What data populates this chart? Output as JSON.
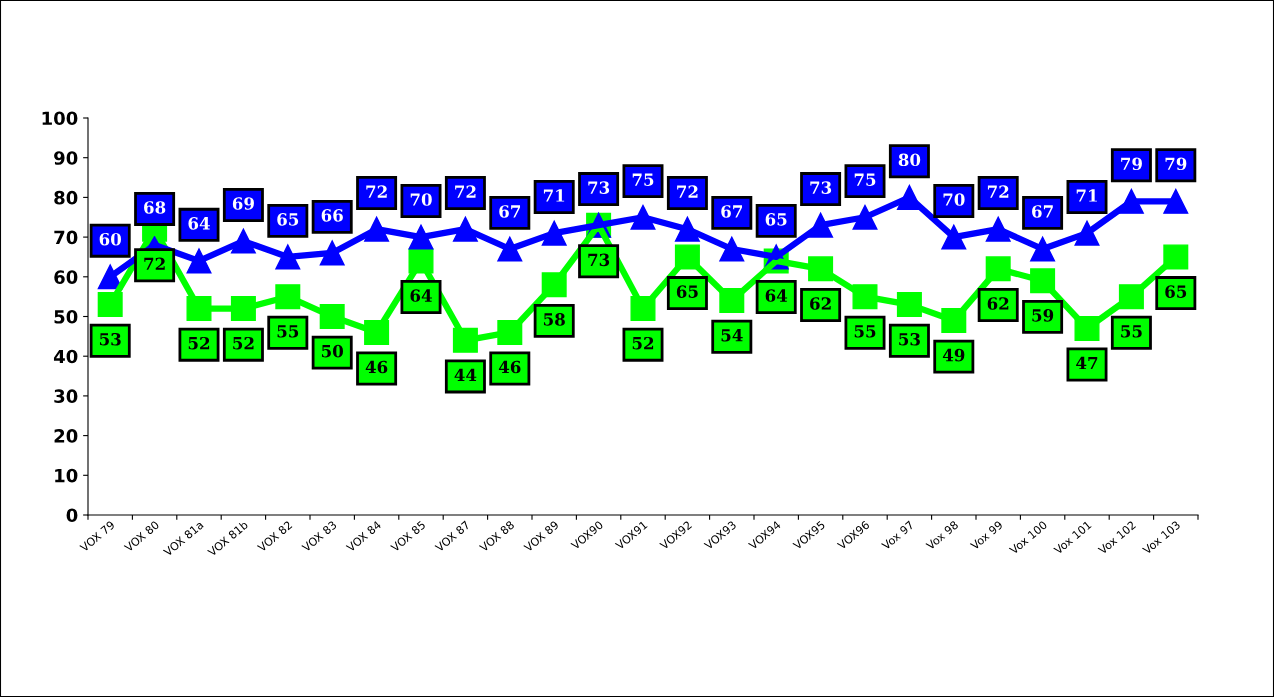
{
  "chart_data": {
    "type": "line",
    "categories": [
      "VOX 79",
      "VOX 80",
      "VOX 81a",
      "VOX 81b",
      "VOX 82",
      "VOX 83",
      "VOX 84",
      "VOX 85",
      "VOX 87",
      "VOX 88",
      "VOX 89",
      "VOX90",
      "VOX91",
      "VOX92",
      "VOX93",
      "VOX94",
      "VOX95",
      "VOX96",
      "Vox 97",
      "Vox 98",
      "Vox 99",
      "Vox 100",
      "Vox 101",
      "Vox 102",
      "Vox 103"
    ],
    "series": [
      {
        "color": "#0000ff",
        "marker": "triangle",
        "values": [
          60,
          68,
          64,
          69,
          65,
          66,
          72,
          70,
          72,
          67,
          71,
          73,
          75,
          72,
          67,
          65,
          73,
          75,
          80,
          70,
          72,
          67,
          71,
          79,
          79
        ]
      },
      {
        "color": "#00ff00",
        "marker": "square",
        "values": [
          53,
          72,
          52,
          52,
          55,
          50,
          46,
          64,
          44,
          46,
          58,
          73,
          52,
          65,
          54,
          64,
          62,
          55,
          53,
          49,
          62,
          59,
          47,
          55,
          65
        ]
      }
    ],
    "ylim": [
      0,
      100
    ],
    "yticks": [
      0,
      10,
      20,
      30,
      40,
      50,
      60,
      70,
      80,
      90,
      100
    ],
    "grid": false,
    "legend": false,
    "data_labels": true,
    "line_style": "solid"
  }
}
